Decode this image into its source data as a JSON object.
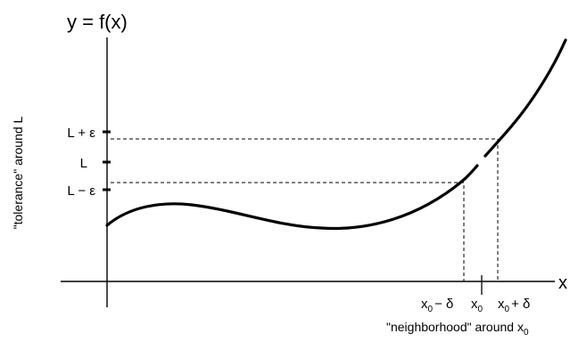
{
  "diagram": {
    "y_axis_title": "y = f(x)",
    "x_axis_label": "x",
    "y_labels": {
      "upper": "L + ε",
      "middle": "L",
      "lower": "L − ε"
    },
    "x_labels": {
      "left": {
        "base": "x",
        "sub": "0",
        "rest": "− δ"
      },
      "middle": {
        "base": "x",
        "sub": "0"
      },
      "right": {
        "base": "x",
        "sub": "0",
        "rest": "+ δ"
      }
    },
    "tolerance_caption": "\"tolerance\" around L",
    "neighborhood_caption": {
      "text": "\"neighborhood\" around x",
      "sub": "0"
    }
  }
}
